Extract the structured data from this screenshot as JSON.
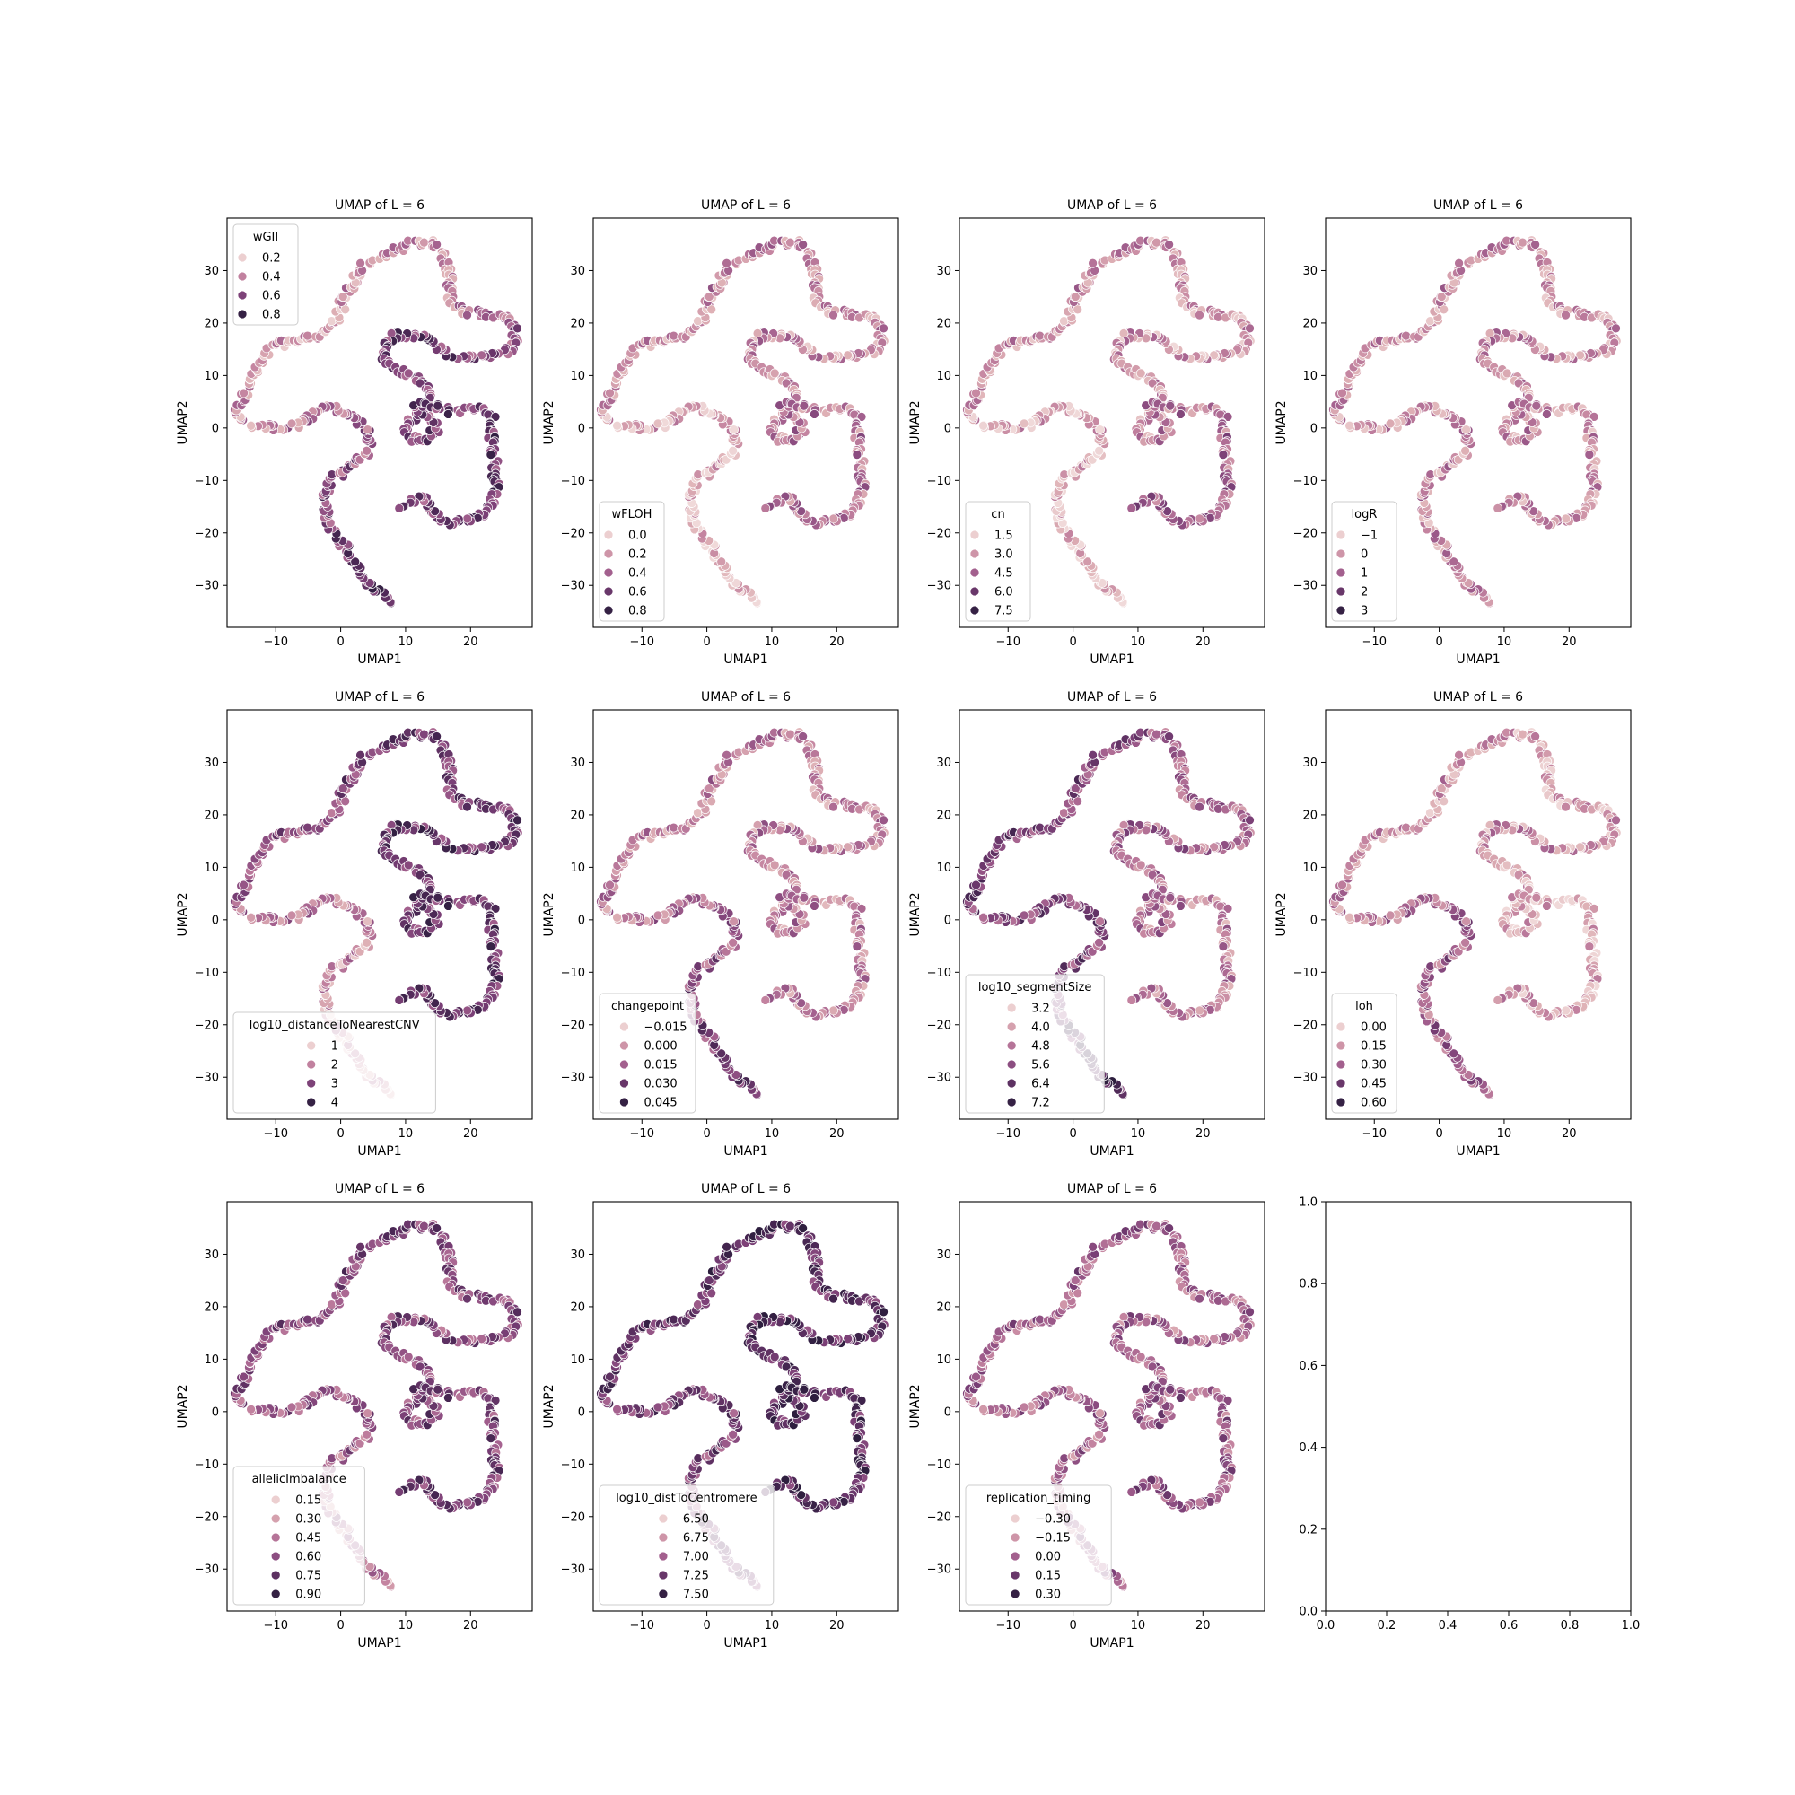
{
  "figure": {
    "colormap": [
      "#f0d9d9",
      "#deb0b5",
      "#c484a0",
      "#a3608e",
      "#7a3f76",
      "#4e2957",
      "#2d1e3e"
    ],
    "trajectory": [
      [
        8.4,
        -33.9
      ],
      [
        7.5,
        -33.2
      ],
      [
        6.5,
        -31.9
      ],
      [
        5.0,
        -30.4
      ],
      [
        3.7,
        -28.6
      ],
      [
        2.4,
        -26.5
      ],
      [
        1.4,
        -24.2
      ],
      [
        0.2,
        -21.8
      ],
      [
        -1.4,
        -19.4
      ],
      [
        -2.3,
        -16.8
      ],
      [
        -2.6,
        -14.2
      ],
      [
        -2.2,
        -11.6
      ],
      [
        -1.1,
        -9.5
      ],
      [
        0.4,
        -8.1
      ],
      [
        2.1,
        -7.1
      ],
      [
        3.4,
        -5.5
      ],
      [
        4.3,
        -3.4
      ],
      [
        4.0,
        -0.9
      ],
      [
        2.6,
        1.4
      ],
      [
        0.6,
        3.0
      ],
      [
        -1.6,
        4.1
      ],
      [
        -3.6,
        3.7
      ],
      [
        -5.1,
        2.0
      ],
      [
        -6.7,
        0.5
      ],
      [
        -8.9,
        0.1
      ],
      [
        -11.1,
        0.1
      ],
      [
        -13.2,
        0.6
      ],
      [
        -15.2,
        1.4
      ],
      [
        -16.0,
        3.0
      ],
      [
        -15.0,
        5.6
      ],
      [
        -14.2,
        8.5
      ],
      [
        -13.1,
        11.0
      ],
      [
        -11.9,
        13.4
      ],
      [
        -10.8,
        15.5
      ],
      [
        -8.9,
        16.2
      ],
      [
        -6.8,
        16.6
      ],
      [
        -4.5,
        17.1
      ],
      [
        -2.1,
        18.6
      ],
      [
        -0.6,
        21.0
      ],
      [
        0.4,
        24.0
      ],
      [
        1.6,
        27.0
      ],
      [
        2.6,
        29.4
      ],
      [
        4.2,
        31.6
      ],
      [
        6.2,
        32.8
      ],
      [
        8.8,
        34.0
      ],
      [
        11.0,
        35.1
      ],
      [
        13.1,
        35.6
      ],
      [
        14.6,
        35.1
      ],
      [
        15.8,
        33.6
      ],
      [
        16.4,
        31.3
      ],
      [
        16.7,
        28.6
      ],
      [
        16.8,
        26.1
      ],
      [
        17.2,
        23.8
      ],
      [
        18.8,
        22.4
      ],
      [
        21.0,
        21.9
      ],
      [
        23.4,
        21.7
      ],
      [
        25.2,
        21.4
      ],
      [
        26.5,
        19.6
      ],
      [
        27.1,
        17.2
      ],
      [
        26.0,
        15.1
      ],
      [
        24.0,
        14.0
      ],
      [
        21.6,
        13.6
      ],
      [
        19.2,
        13.4
      ],
      [
        17.0,
        13.8
      ],
      [
        15.0,
        15.2
      ],
      [
        13.7,
        16.8
      ],
      [
        11.9,
        17.6
      ],
      [
        9.7,
        17.8
      ],
      [
        7.8,
        17.4
      ],
      [
        6.8,
        15.8
      ],
      [
        6.6,
        13.8
      ],
      [
        7.6,
        12.0
      ],
      [
        9.4,
        10.8
      ],
      [
        11.3,
        9.6
      ],
      [
        12.8,
        8.1
      ],
      [
        13.6,
        6.1
      ],
      [
        13.4,
        4.1
      ],
      [
        11.8,
        2.6
      ],
      [
        10.3,
        1.4
      ],
      [
        9.7,
        -0.2
      ],
      [
        10.5,
        -1.8
      ],
      [
        12.1,
        -2.5
      ],
      [
        13.7,
        -1.9
      ],
      [
        14.5,
        -0.4
      ],
      [
        14.5,
        1.1
      ],
      [
        13.1,
        2.3
      ],
      [
        11.6,
        3.6
      ],
      [
        11.6,
        4.6
      ],
      [
        13.6,
        4.3
      ],
      [
        15.6,
        3.6
      ],
      [
        17.4,
        3.0
      ],
      [
        19.2,
        3.6
      ],
      [
        21.1,
        4.0
      ],
      [
        22.8,
        3.4
      ],
      [
        23.4,
        1.4
      ],
      [
        23.2,
        -1.1
      ],
      [
        23.3,
        -3.6
      ],
      [
        23.6,
        -6.1
      ],
      [
        23.5,
        -8.6
      ],
      [
        23.8,
        -11.1
      ],
      [
        23.6,
        -13.6
      ],
      [
        22.9,
        -15.6
      ],
      [
        21.4,
        -16.9
      ],
      [
        19.4,
        -17.6
      ],
      [
        17.6,
        -17.9
      ],
      [
        16.1,
        -18.1
      ],
      [
        14.9,
        -17.4
      ],
      [
        14.1,
        -15.7
      ],
      [
        13.2,
        -14.0
      ],
      [
        11.9,
        -13.3
      ],
      [
        10.6,
        -14.0
      ],
      [
        9.4,
        -14.9
      ],
      [
        8.6,
        -14.6
      ]
    ],
    "panels": [
      {
        "title": "UMAP of L = 6",
        "xlabel": "UMAP1",
        "ylabel": "UMAP2",
        "xticks": [
          "−10",
          "0",
          "10",
          "20"
        ],
        "yticks": [
          "−30",
          "−20",
          "−10",
          "0",
          "10",
          "20",
          "30"
        ],
        "legend": {
          "title": "wGII",
          "placement": "upper left",
          "entries": [
            "0.2",
            "0.4",
            "0.6",
            "0.8"
          ]
        },
        "color_profile": [
          0.8,
          0.5,
          0.25,
          0.3,
          0.7,
          0.6,
          0.75,
          0.6
        ]
      },
      {
        "title": "UMAP of L = 6",
        "xlabel": "UMAP1",
        "ylabel": "UMAP2",
        "xticks": [
          "−10",
          "0",
          "10",
          "20"
        ],
        "yticks": [
          "−30",
          "−20",
          "−10",
          "0",
          "10",
          "20",
          "30"
        ],
        "legend": {
          "title": "wFLOH",
          "placement": "lower left",
          "entries": [
            "0.0",
            "0.2",
            "0.4",
            "0.6",
            "0.8"
          ]
        },
        "color_profile": [
          0.05,
          0.15,
          0.3,
          0.35,
          0.3,
          0.35,
          0.4,
          0.4
        ]
      },
      {
        "title": "UMAP of L = 6",
        "xlabel": "UMAP1",
        "ylabel": "UMAP2",
        "xticks": [
          "−10",
          "0",
          "10",
          "20"
        ],
        "yticks": [
          "−30",
          "−20",
          "−10",
          "0",
          "10",
          "20",
          "30"
        ],
        "legend": {
          "title": "cn",
          "placement": "lower left",
          "entries": [
            "1.5",
            "3.0",
            "4.5",
            "6.0",
            "7.5"
          ]
        },
        "color_profile": [
          0.05,
          0.15,
          0.3,
          0.3,
          0.25,
          0.3,
          0.45,
          0.5
        ]
      },
      {
        "title": "UMAP of L = 6",
        "xlabel": "UMAP1",
        "ylabel": "UMAP2",
        "xticks": [
          "−10",
          "0",
          "10",
          "20"
        ],
        "yticks": [
          "−30",
          "−20",
          "−10",
          "0",
          "10",
          "20",
          "30"
        ],
        "legend": {
          "title": "logR",
          "placement": "lower left",
          "entries": [
            "−1",
            "0",
            "1",
            "2",
            "3"
          ]
        },
        "color_profile": [
          0.3,
          0.3,
          0.3,
          0.3,
          0.3,
          0.3,
          0.3,
          0.3
        ]
      },
      {
        "title": "UMAP of L = 6",
        "xlabel": "UMAP1",
        "ylabel": "UMAP2",
        "xticks": [
          "−10",
          "0",
          "10",
          "20"
        ],
        "yticks": [
          "−30",
          "−20",
          "−10",
          "0",
          "10",
          "20",
          "30"
        ],
        "legend": {
          "title": "log10_distanceToNearestCNV",
          "placement": "lower left",
          "entries": [
            "1",
            "2",
            "3",
            "4"
          ]
        },
        "color_profile": [
          0.2,
          0.3,
          0.55,
          0.7,
          0.75,
          0.7,
          0.75,
          0.7
        ]
      },
      {
        "title": "UMAP of L = 6",
        "xlabel": "UMAP1",
        "ylabel": "UMAP2",
        "xticks": [
          "−10",
          "0",
          "10",
          "20"
        ],
        "yticks": [
          "−30",
          "−20",
          "−10",
          "0",
          "10",
          "20",
          "30"
        ],
        "legend": {
          "title": "changepoint",
          "placement": "lower left",
          "entries": [
            "−0.015",
            "0.000",
            "0.015",
            "0.030",
            "0.045"
          ]
        },
        "color_profile": [
          0.7,
          0.5,
          0.35,
          0.35,
          0.35,
          0.35,
          0.35,
          0.35
        ]
      },
      {
        "title": "UMAP of L = 6",
        "xlabel": "UMAP1",
        "ylabel": "UMAP2",
        "xticks": [
          "−10",
          "0",
          "10",
          "20"
        ],
        "yticks": [
          "−30",
          "−20",
          "−10",
          "0",
          "10",
          "20",
          "30"
        ],
        "legend": {
          "title": "log10_segmentSize",
          "placement": "lower left",
          "entries": [
            "3.2",
            "4.0",
            "4.8",
            "5.6",
            "6.4",
            "7.2"
          ]
        },
        "color_profile": [
          0.85,
          0.6,
          0.7,
          0.5,
          0.45,
          0.4,
          0.35,
          0.35
        ]
      },
      {
        "title": "UMAP of L = 6",
        "xlabel": "UMAP1",
        "ylabel": "UMAP2",
        "xticks": [
          "−10",
          "0",
          "10",
          "20"
        ],
        "yticks": [
          "−30",
          "−20",
          "−10",
          "0",
          "10",
          "20",
          "30"
        ],
        "legend": {
          "title": "loh",
          "placement": "lower left",
          "entries": [
            "0.00",
            "0.15",
            "0.30",
            "0.45",
            "0.60"
          ]
        },
        "color_profile": [
          0.45,
          0.5,
          0.3,
          0.2,
          0.3,
          0.15,
          0.15,
          0.25
        ]
      },
      {
        "title": "UMAP of L = 6",
        "xlabel": "UMAP1",
        "ylabel": "UMAP2",
        "xticks": [
          "−10",
          "0",
          "10",
          "20"
        ],
        "yticks": [
          "−30",
          "−20",
          "−10",
          "0",
          "10",
          "20",
          "30"
        ],
        "legend": {
          "title": "allelicImbalance",
          "placement": "lower left",
          "entries": [
            "0.15",
            "0.30",
            "0.45",
            "0.60",
            "0.75",
            "0.90"
          ]
        },
        "color_profile": [
          0.3,
          0.5,
          0.6,
          0.65,
          0.6,
          0.6,
          0.65,
          0.7
        ]
      },
      {
        "title": "UMAP of L = 6",
        "xlabel": "UMAP1",
        "ylabel": "UMAP2",
        "xticks": [
          "−10",
          "0",
          "10",
          "20"
        ],
        "yticks": [
          "−30",
          "−20",
          "−10",
          "0",
          "10",
          "20",
          "30"
        ],
        "legend": {
          "title": "log10_distToCentromere",
          "placement": "lower left",
          "entries": [
            "6.50",
            "6.75",
            "7.00",
            "7.25",
            "7.50"
          ]
        },
        "color_profile": [
          0.6,
          0.65,
          0.75,
          0.8,
          0.8,
          0.8,
          0.8,
          0.8
        ]
      },
      {
        "title": "UMAP of L = 6",
        "xlabel": "UMAP1",
        "ylabel": "UMAP2",
        "xticks": [
          "−10",
          "0",
          "10",
          "20"
        ],
        "yticks": [
          "−30",
          "−20",
          "−10",
          "0",
          "10",
          "20",
          "30"
        ],
        "legend": {
          "title": "replication_timing",
          "placement": "lower left",
          "entries": [
            "−0.30",
            "−0.15",
            "0.00",
            "0.15",
            "0.30"
          ]
        },
        "color_profile": [
          0.45,
          0.45,
          0.5,
          0.5,
          0.45,
          0.5,
          0.5,
          0.55
        ]
      }
    ],
    "empty_panel": {
      "xticks": [
        "0.0",
        "0.2",
        "0.4",
        "0.6",
        "0.8",
        "1.0"
      ],
      "yticks": [
        "0.0",
        "0.2",
        "0.4",
        "0.6",
        "0.8",
        "1.0"
      ]
    }
  },
  "chart_data": {
    "type": "scatter",
    "subplots": 12,
    "layout": "3 rows x 4 columns",
    "xlim": [
      -17.5,
      29.5
    ],
    "ylim": [
      -38,
      40
    ],
    "x_tick_values": [
      -10,
      0,
      10,
      20
    ],
    "y_tick_values": [
      -30,
      -20,
      -10,
      0,
      10,
      20,
      30
    ],
    "empty_axes_limits": {
      "xlim": [
        0,
        1
      ],
      "ylim": [
        0,
        1
      ]
    },
    "hue_variables": [
      "wGII",
      "wFLOH",
      "cn",
      "logR",
      "log10_distanceToNearestCNV",
      "changepoint",
      "log10_segmentSize",
      "loh",
      "allelicImbalance",
      "log10_distToCentromere",
      "replication_timing"
    ],
    "grid": false
  }
}
